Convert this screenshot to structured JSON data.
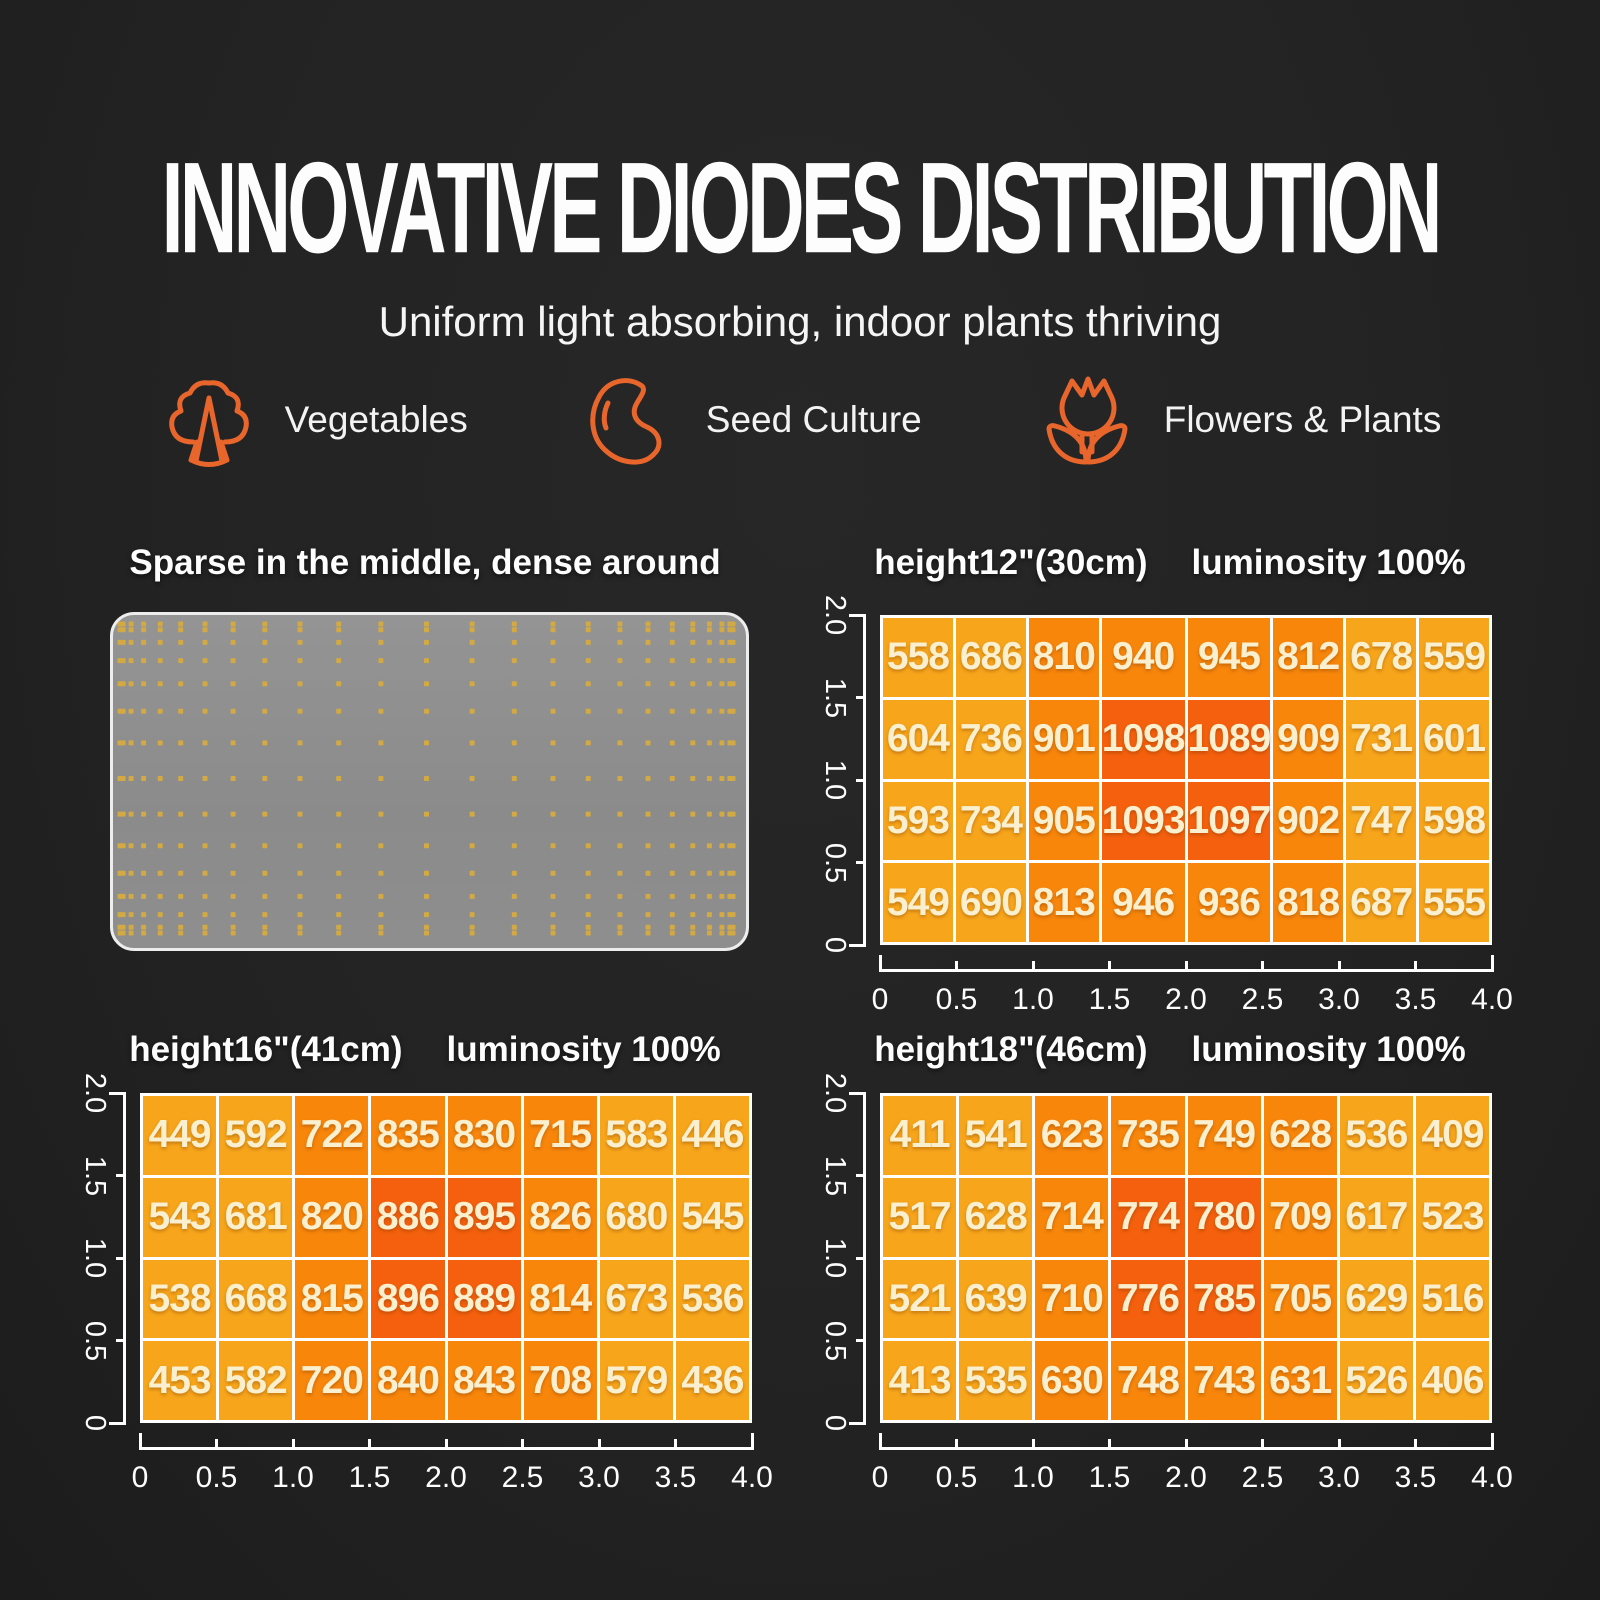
{
  "page": {
    "title": "INNOVATIVE DIODES DISTRIBUTION",
    "subtitle": "Uniform light absorbing, indoor plants thriving",
    "background": "#232323",
    "accent_orange": "#E8662C"
  },
  "features": [
    {
      "icon": "broccoli-icon",
      "label": "Vegetables"
    },
    {
      "icon": "seed-icon",
      "label": "Seed Culture"
    },
    {
      "icon": "flower-icon",
      "label": "Flowers & Plants"
    }
  ],
  "diode_panel": {
    "title": "Sparse in the middle, dense around",
    "board_color": "#8D8D8D",
    "dot_color": "#D2A943"
  },
  "heatmap_palette": {
    "low": "#F7A51B",
    "mid": "#F8860B",
    "high": "#F4600D",
    "cell_text": "#FAF0CF",
    "axis_color": "#FFFFFF"
  },
  "chart_data": [
    {
      "type": "heatmap",
      "title_left": "height12\"(30cm)",
      "title_right": "luminosity 100%",
      "x_ticks": [
        "0",
        "0.5",
        "1.0",
        "1.5",
        "2.0",
        "2.5",
        "3.0",
        "3.5",
        "4.0"
      ],
      "y_ticks": [
        "2.0",
        "1.5",
        "1.0",
        "0.5",
        "0"
      ],
      "xlim": [
        0,
        4
      ],
      "ylim": [
        0,
        2
      ],
      "rows": [
        [
          558,
          686,
          810,
          940,
          945,
          812,
          678,
          559
        ],
        [
          604,
          736,
          901,
          1098,
          1089,
          909,
          731,
          601
        ],
        [
          593,
          734,
          905,
          1093,
          1097,
          902,
          747,
          598
        ],
        [
          549,
          690,
          813,
          946,
          936,
          818,
          687,
          555
        ]
      ]
    },
    {
      "type": "heatmap",
      "title_left": "height16\"(41cm)",
      "title_right": "luminosity 100%",
      "x_ticks": [
        "0",
        "0.5",
        "1.0",
        "1.5",
        "2.0",
        "2.5",
        "3.0",
        "3.5",
        "4.0"
      ],
      "y_ticks": [
        "2.0",
        "1.5",
        "1.0",
        "0.5",
        "0"
      ],
      "xlim": [
        0,
        4
      ],
      "ylim": [
        0,
        2
      ],
      "rows": [
        [
          449,
          592,
          722,
          835,
          830,
          715,
          583,
          446
        ],
        [
          543,
          681,
          820,
          886,
          895,
          826,
          680,
          545
        ],
        [
          538,
          668,
          815,
          896,
          889,
          814,
          673,
          536
        ],
        [
          453,
          582,
          720,
          840,
          843,
          708,
          579,
          436
        ]
      ]
    },
    {
      "type": "heatmap",
      "title_left": "height18\"(46cm)",
      "title_right": "luminosity 100%",
      "x_ticks": [
        "0",
        "0.5",
        "1.0",
        "1.5",
        "2.0",
        "2.5",
        "3.0",
        "3.5",
        "4.0"
      ],
      "y_ticks": [
        "2.0",
        "1.5",
        "1.0",
        "0.5",
        "0"
      ],
      "xlim": [
        0,
        4
      ],
      "ylim": [
        0,
        2
      ],
      "rows": [
        [
          411,
          541,
          623,
          735,
          749,
          628,
          536,
          409
        ],
        [
          517,
          628,
          714,
          774,
          780,
          709,
          617,
          523
        ],
        [
          521,
          639,
          710,
          776,
          785,
          705,
          629,
          516
        ],
        [
          413,
          535,
          630,
          748,
          743,
          631,
          526,
          406
        ]
      ]
    }
  ]
}
